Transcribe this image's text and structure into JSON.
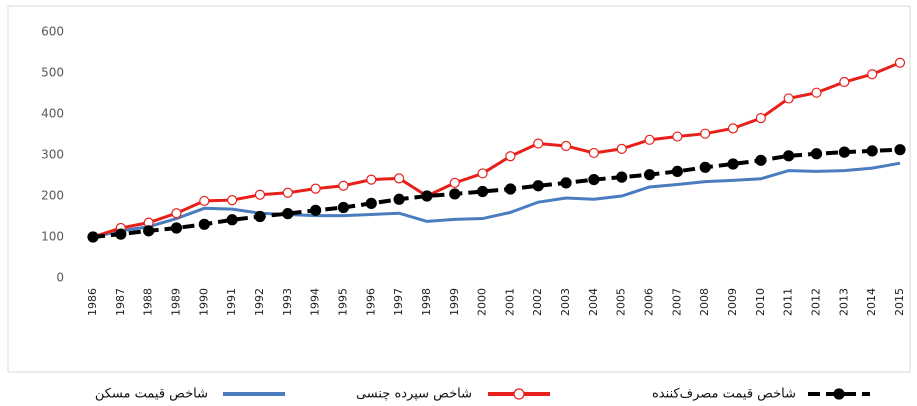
{
  "chart_data": {
    "type": "line",
    "categories": [
      "1986",
      "1987",
      "1988",
      "1989",
      "1990",
      "1991",
      "1992",
      "1993",
      "1994",
      "1995",
      "1996",
      "1997",
      "1998",
      "1999",
      "2000",
      "2001",
      "2002",
      "2003",
      "2004",
      "2005",
      "2006",
      "2007",
      "2008",
      "2009",
      "2010",
      "2011",
      "2012",
      "2013",
      "2014",
      "2015"
    ],
    "series": [
      {
        "name": "شاخص قیمت مصرف‌کننده",
        "color": "#000000",
        "style": "dashed",
        "marker": "filled",
        "values": [
          100,
          107,
          115,
          122,
          131,
          142,
          150,
          157,
          165,
          172,
          182,
          192,
          200,
          205,
          211,
          217,
          225,
          232,
          240,
          246,
          252,
          260,
          270,
          278,
          287,
          298,
          303,
          307,
          310,
          313
        ]
      },
      {
        "name": "شاخص سپرده چنسی",
        "color": "#e8201c",
        "style": "solid",
        "marker": "hollow",
        "values": [
          100,
          122,
          135,
          158,
          188,
          190,
          203,
          208,
          218,
          225,
          240,
          243,
          200,
          232,
          255,
          297,
          328,
          322,
          305,
          315,
          337,
          345,
          352,
          365,
          390,
          438,
          452,
          478,
          497,
          525
        ]
      },
      {
        "name": "شاخص قیمت مسکن",
        "color": "#4a7cc0",
        "style": "solid",
        "marker": "none",
        "values": [
          100,
          115,
          125,
          145,
          170,
          168,
          158,
          155,
          152,
          152,
          155,
          158,
          138,
          143,
          145,
          160,
          185,
          195,
          192,
          200,
          222,
          228,
          235,
          238,
          242,
          262,
          260,
          262,
          268,
          280
        ]
      }
    ],
    "ylim": [
      0,
      600
    ],
    "yticks": [
      0,
      100,
      200,
      300,
      400,
      500,
      600
    ],
    "grid": false,
    "legend": "bottom"
  }
}
